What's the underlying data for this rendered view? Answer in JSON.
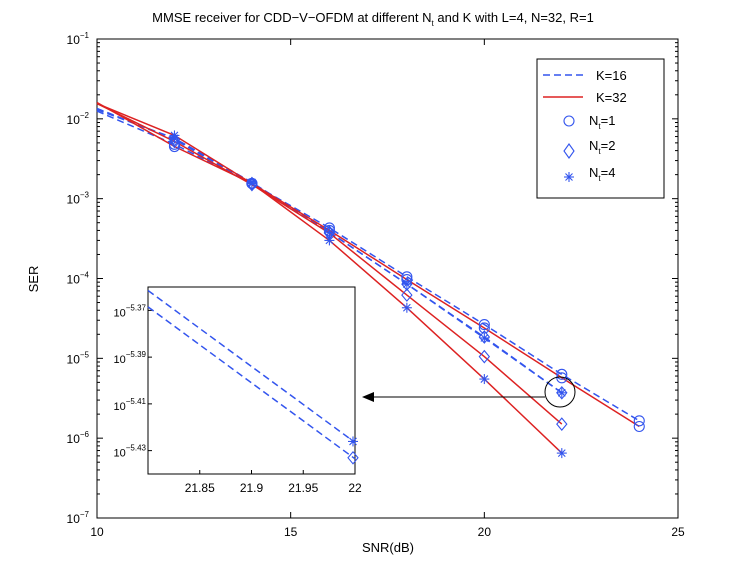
{
  "chart_data": [
    {
      "type": "line",
      "title": "MMSE receiver for CDD−V−OFDM at different N_t and K with L=4, N=32, R=1",
      "title_parts": {
        "main": "MMSE receiver for CDD−V−OFDM at different N",
        "sub": "t",
        "rest": " and K with L=4, N=32, R=1"
      },
      "xlabel": "SNR(dB)",
      "ylabel": "SER",
      "xlim": [
        10,
        25
      ],
      "ylim": [
        1e-07,
        0.1
      ],
      "yscale": "log",
      "grid": false,
      "legend_position": "top-right",
      "xticks": [
        10,
        15,
        20,
        25
      ],
      "yticks": [
        {
          "base": "10",
          "exp": "−1"
        },
        {
          "base": "10",
          "exp": "−2"
        },
        {
          "base": "10",
          "exp": "−3"
        },
        {
          "base": "10",
          "exp": "−4"
        },
        {
          "base": "10",
          "exp": "−5"
        },
        {
          "base": "10",
          "exp": "−6"
        },
        {
          "base": "10",
          "exp": "−7"
        }
      ],
      "legend": [
        {
          "label": "K=16",
          "kind": "line",
          "style": "dashed",
          "color": "#3355ee"
        },
        {
          "label": "K=32",
          "kind": "line",
          "style": "solid",
          "color": "#dd2222"
        },
        {
          "label_main": "N",
          "label_sub": "t",
          "label_rest": "=1",
          "kind": "marker",
          "marker": "circle",
          "color": "#3355ee"
        },
        {
          "label_main": "N",
          "label_sub": "t",
          "label_rest": "=2",
          "kind": "marker",
          "marker": "diamond",
          "color": "#3355ee"
        },
        {
          "label_main": "N",
          "label_sub": "t",
          "label_rest": "=4",
          "kind": "marker",
          "marker": "star",
          "color": "#3355ee"
        }
      ],
      "x": [
        10,
        12,
        14,
        16,
        18,
        20,
        22,
        24
      ],
      "series": [
        {
          "K": 16,
          "Nt": 1,
          "style": "dashed",
          "color": "#3355ee",
          "marker": "circle",
          "x": [
            10,
            12,
            14,
            16,
            18,
            20,
            22,
            24
          ],
          "y": [
            0.0125,
            0.0048,
            0.00155,
            0.00043,
            0.000105,
            2.65e-05,
            6.3e-06,
            1.65e-06
          ]
        },
        {
          "K": 16,
          "Nt": 2,
          "style": "dashed",
          "color": "#3355ee",
          "marker": "diamond",
          "x": [
            10,
            12,
            14,
            16,
            18,
            20,
            22
          ],
          "y": [
            0.0135,
            0.0055,
            0.00155,
            0.00038,
            8.5e-05,
            1.85e-05,
            3.7e-06
          ]
        },
        {
          "K": 16,
          "Nt": 4,
          "style": "dashed",
          "color": "#3355ee",
          "marker": "star",
          "x": [
            10,
            12,
            14,
            16,
            18,
            20,
            22
          ],
          "y": [
            0.013,
            0.0057,
            0.0016,
            0.00038,
            8.5e-05,
            1.8e-05,
            3.7e-06
          ]
        },
        {
          "K": 32,
          "Nt": 1,
          "style": "solid",
          "color": "#dd2222",
          "marker": "circle",
          "x": [
            10,
            12,
            14,
            16,
            18,
            20,
            22,
            24
          ],
          "y": [
            0.016,
            0.0045,
            0.00155,
            0.0004,
            9.7e-05,
            2.4e-05,
            5.7e-06,
            1.4e-06
          ]
        },
        {
          "K": 32,
          "Nt": 2,
          "style": "solid",
          "color": "#dd2222",
          "marker": "diamond",
          "x": [
            10,
            12,
            14,
            16,
            18,
            20,
            22
          ],
          "y": [
            0.0155,
            0.0052,
            0.0015,
            0.00037,
            6.2e-05,
            1.05e-05,
            1.5e-06
          ]
        },
        {
          "K": 32,
          "Nt": 4,
          "style": "solid",
          "color": "#dd2222",
          "marker": "star",
          "x": [
            10,
            12,
            14,
            16,
            18,
            20,
            22
          ],
          "y": [
            0.0155,
            0.0062,
            0.00155,
            0.0003,
            4.3e-05,
            5.5e-06,
            6.5e-07
          ]
        }
      ],
      "annotation": {
        "type": "circle-with-arrow",
        "target_x": 22,
        "target_y": 3.7e-06
      }
    },
    {
      "type": "line",
      "role": "inset",
      "xlim": [
        21.8,
        22.0
      ],
      "ylim": [
        -5.44,
        -5.36
      ],
      "yscale": "log-exponent",
      "xticks": [
        "21.85",
        "21.9",
        "21.95",
        "22"
      ],
      "yticks": [
        {
          "base": "10",
          "exp": "−5.37",
          "value": -5.37
        },
        {
          "base": "10",
          "exp": "−5.39",
          "value": -5.39
        },
        {
          "base": "10",
          "exp": "−5.41",
          "value": -5.41
        },
        {
          "base": "10",
          "exp": "−5.43",
          "value": -5.43
        }
      ],
      "series": [
        {
          "Nt": 4,
          "style": "dashed",
          "color": "#3355ee",
          "marker": "star",
          "x": [
            21.8,
            22.0
          ],
          "y": [
            -5.3615,
            -5.4265
          ]
        },
        {
          "Nt": 2,
          "style": "dashed",
          "color": "#3355ee",
          "marker": "diamond",
          "x": [
            21.8,
            22.0
          ],
          "y": [
            -5.3685,
            -5.4335
          ]
        }
      ]
    }
  ]
}
